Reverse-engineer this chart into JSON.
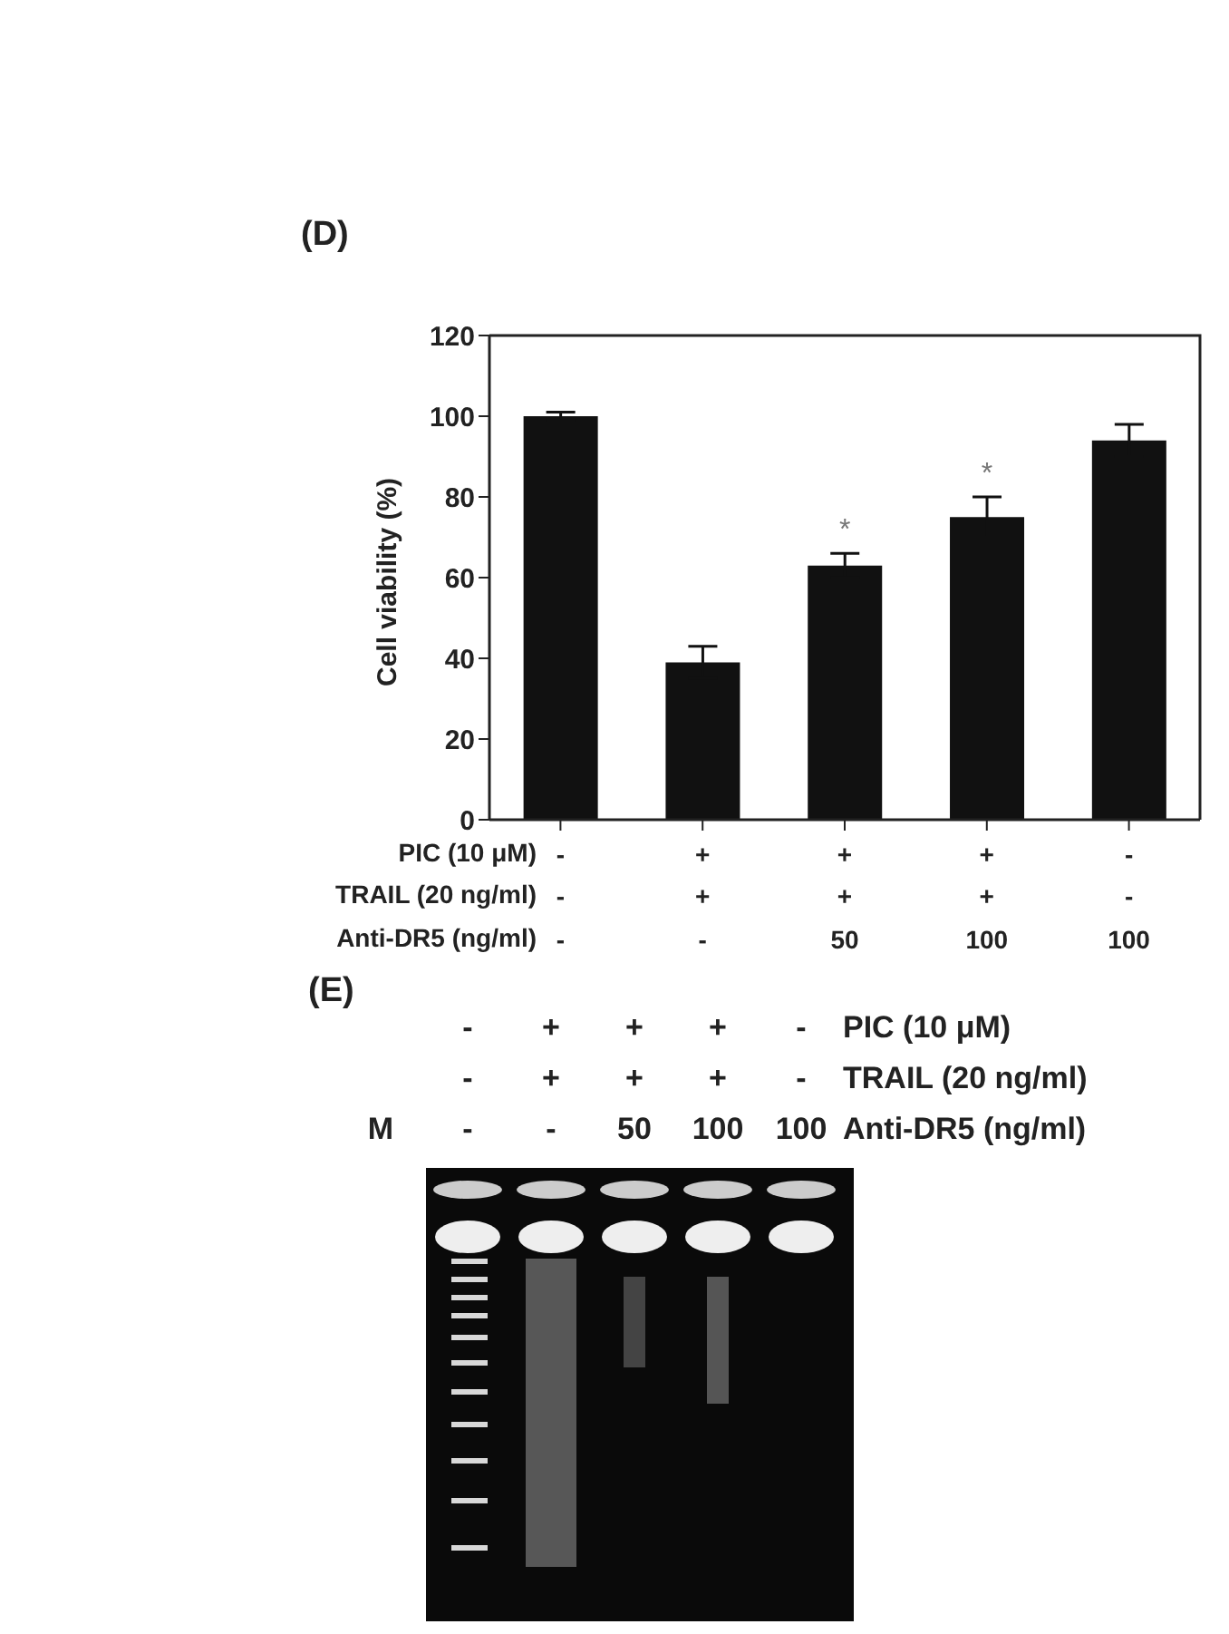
{
  "chart_data": [
    {
      "type": "bar",
      "title": "(D)",
      "ylabel": "Cell viability (%)",
      "categories": [
        "-\n-\n-",
        "+\n+\n-",
        "+\n+\n50",
        "+\n+\n100",
        "-\n-\n100"
      ],
      "values": [
        100,
        39,
        63,
        75,
        94
      ],
      "color": "#111111",
      "errors": [
        1,
        4,
        3,
        5,
        4
      ],
      "value_labels": [
        null,
        null,
        "*",
        "*",
        null
      ],
      "annotations": [
        "PIC (10 μM)",
        "TRAIL (20 ng/ml)",
        "Anti-DR5 (ng/ml)"
      ],
      "ylim": [
        0,
        120
      ],
      "yticks": [
        0,
        20,
        40,
        60,
        80,
        100,
        120
      ]
    },
    {
      "type": "other",
      "title": "(E)",
      "categories": [
        "\n\nM",
        "-\n-\n-",
        "+\n+\n-",
        "+\n+\n50",
        "+\n+\n100",
        "-\n-\n100"
      ],
      "annotations": [
        "PIC (10 μM)",
        "TRAIL (20 ng/ml)",
        "Anti-DR5 (ng/ml)"
      ]
    }
  ]
}
